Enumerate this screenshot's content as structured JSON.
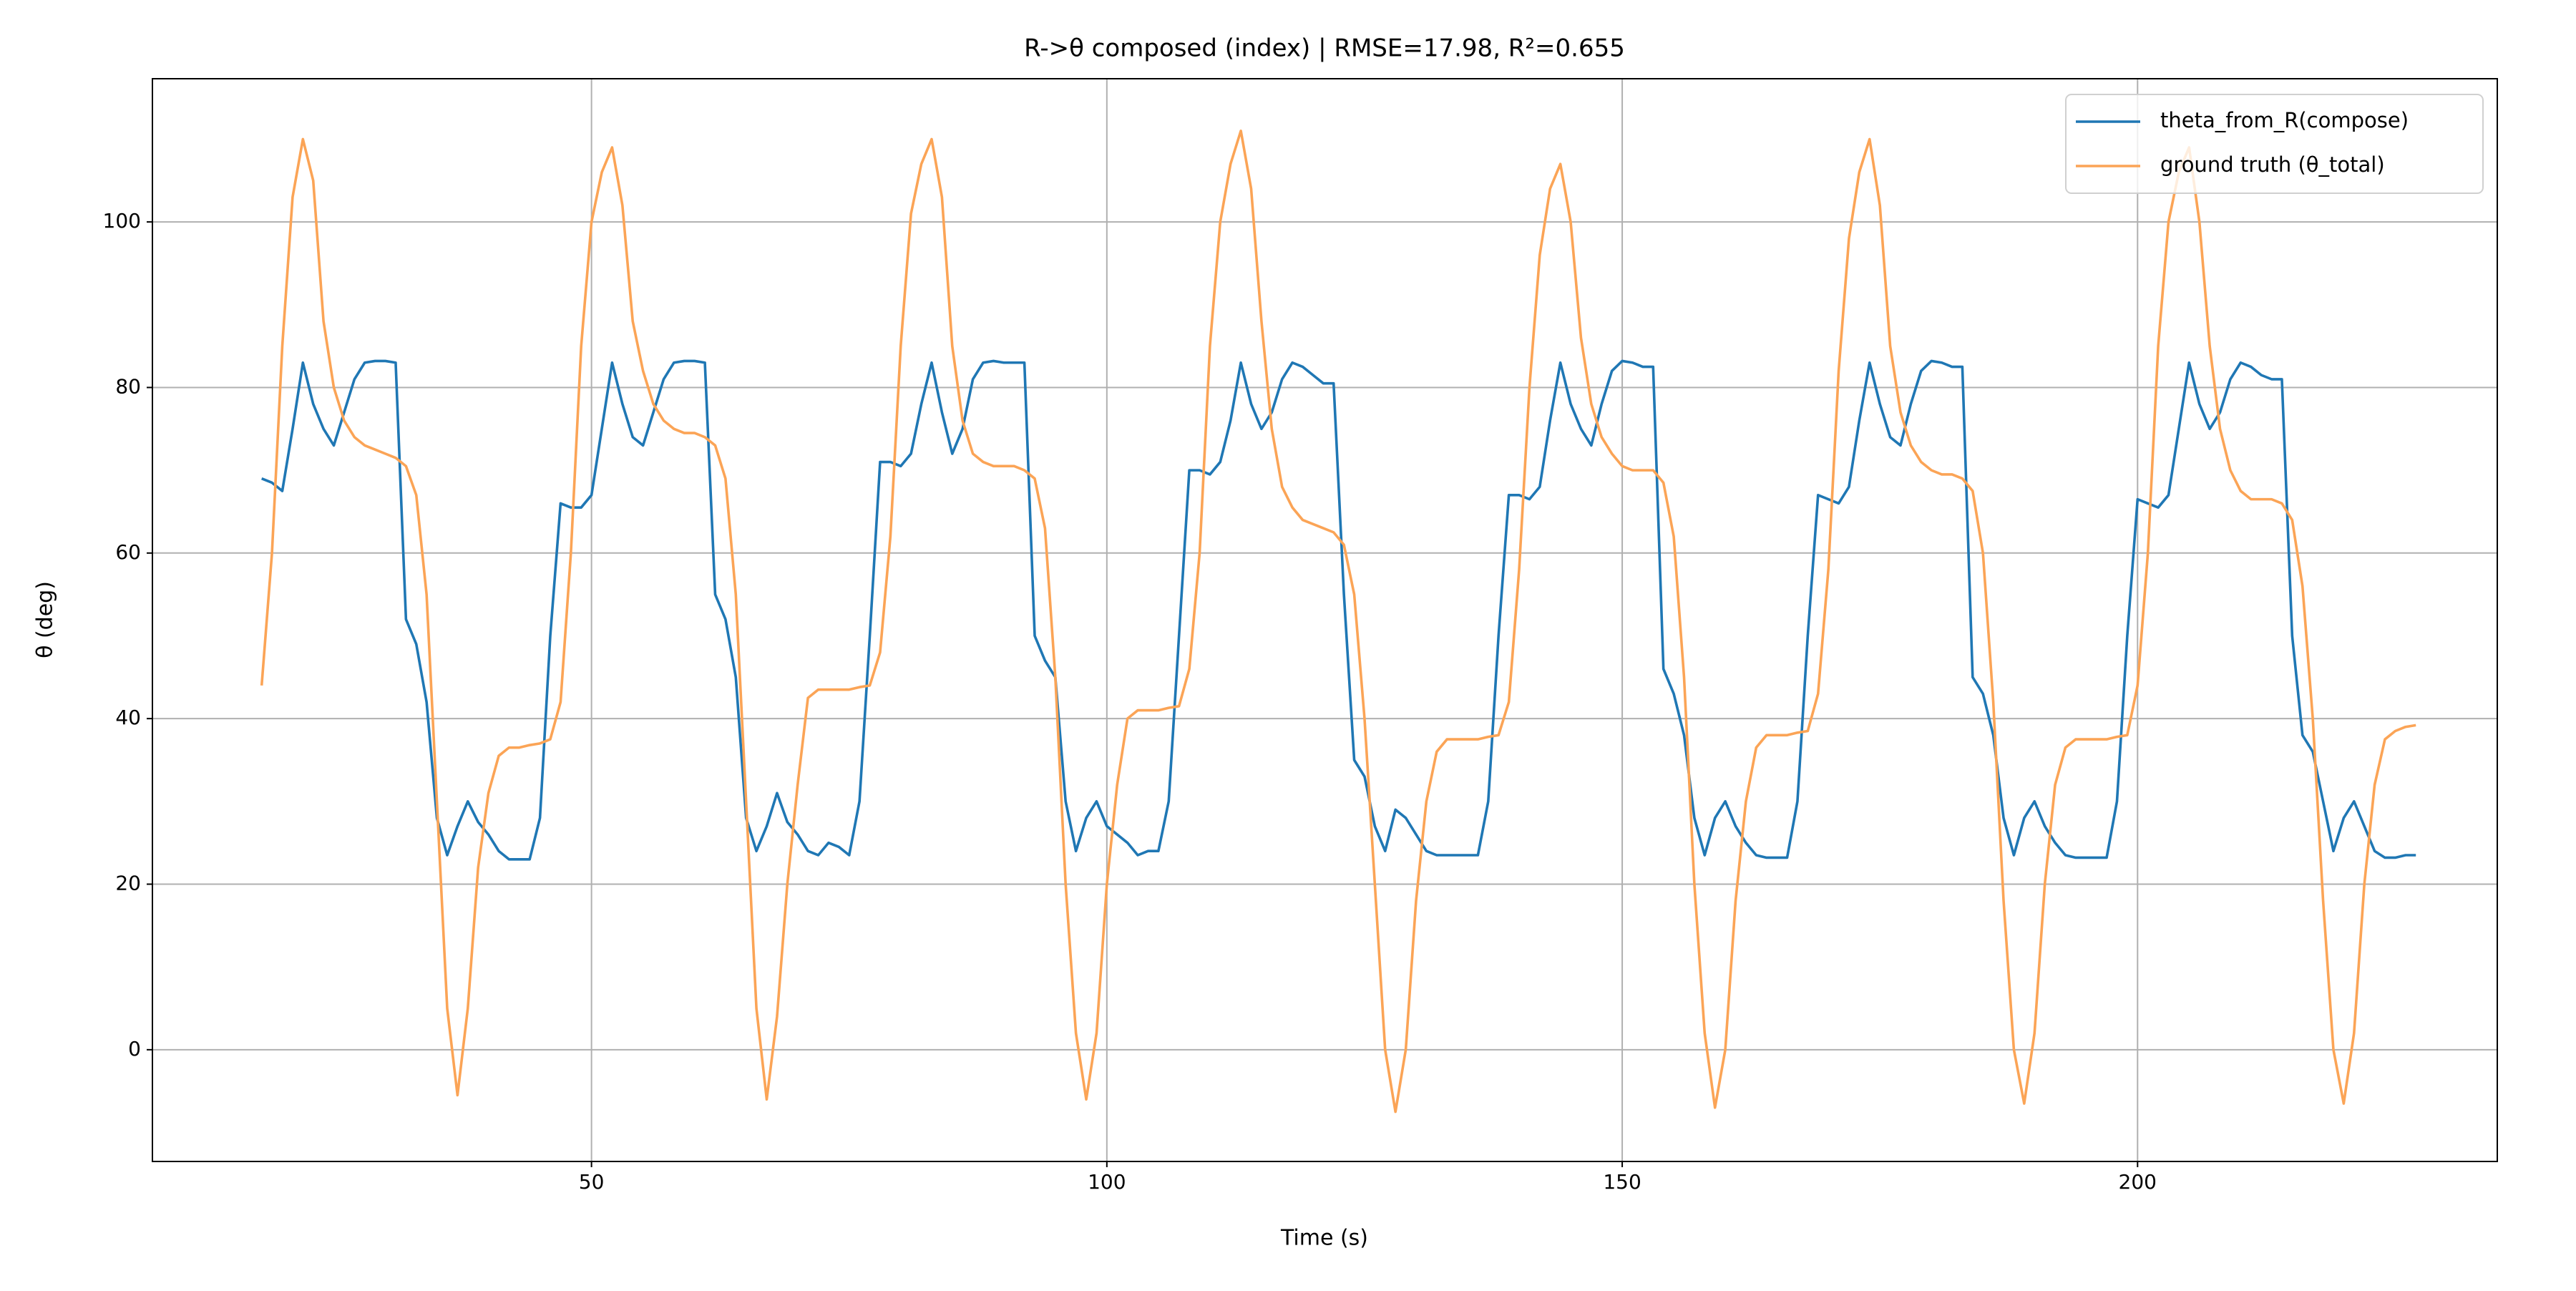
{
  "chart_data": {
    "type": "line",
    "title": "R->θ composed (index) | RMSE=17.98, R²=0.655",
    "xlabel": "Time (s)",
    "ylabel": "θ (deg)",
    "xlim": [
      7.4,
      234.9
    ],
    "ylim": [
      -13.5,
      117.3
    ],
    "xticks": [
      50,
      100,
      150,
      200
    ],
    "yticks": [
      0,
      20,
      40,
      60,
      80,
      100
    ],
    "grid": true,
    "legend": "upper right",
    "x": [
      18,
      19,
      20,
      21,
      22,
      23,
      24,
      25,
      26,
      27,
      28,
      29,
      30,
      31,
      32,
      33,
      34,
      35,
      36,
      37,
      38,
      39,
      40,
      41,
      42,
      43,
      44,
      45,
      46,
      47,
      48,
      49,
      50,
      51,
      52,
      53,
      54,
      55,
      56,
      57,
      58,
      59,
      60,
      61,
      62,
      63,
      64,
      65,
      66,
      67,
      68,
      69,
      70,
      71,
      72,
      73,
      74,
      75,
      76,
      77,
      78,
      79,
      80,
      81,
      82,
      83,
      84,
      85,
      86,
      87,
      88,
      89,
      90,
      91,
      92,
      93,
      94,
      95,
      96,
      97,
      98,
      99,
      100,
      101,
      102,
      103,
      104,
      105,
      106,
      107,
      108,
      109,
      110,
      111,
      112,
      113,
      114,
      115,
      116,
      117,
      118,
      119,
      120,
      121,
      122,
      123,
      124,
      125,
      126,
      127,
      128,
      129,
      130,
      131,
      132,
      133,
      134,
      135,
      136,
      137,
      138,
      139,
      140,
      141,
      142,
      143,
      144,
      145,
      146,
      147,
      148,
      149,
      150,
      151,
      152,
      153,
      154,
      155,
      156,
      157,
      158,
      159,
      160,
      161,
      162,
      163,
      164,
      165,
      166,
      167,
      168,
      169,
      170,
      171,
      172,
      173,
      174,
      175,
      176,
      177,
      178,
      179,
      180,
      181,
      182,
      183,
      184,
      185,
      186,
      187,
      188,
      189,
      190,
      191,
      192,
      193,
      194,
      195,
      196,
      197,
      198,
      199,
      200,
      201,
      202,
      203,
      204,
      205,
      206,
      207,
      208,
      209,
      210,
      211,
      212,
      213,
      214,
      215,
      216,
      217,
      218,
      219,
      220,
      221,
      222,
      223,
      224,
      225,
      226,
      227
    ],
    "series": [
      {
        "name": "theta_from_R(compose)",
        "color": "#1f77b4",
        "values": [
          69,
          68.5,
          67.5,
          75,
          83,
          78,
          75,
          73,
          77,
          81,
          83,
          83.2,
          83.2,
          83,
          52,
          49,
          42,
          28,
          23.5,
          27,
          30,
          27.5,
          26,
          24,
          23,
          23,
          23,
          28,
          50,
          66,
          65.5,
          65.5,
          67,
          75,
          83,
          78,
          74,
          73,
          77,
          81,
          83,
          83.2,
          83.2,
          83,
          55,
          52,
          45,
          28,
          24,
          27,
          31,
          27.5,
          26,
          24,
          23.5,
          25,
          24.5,
          23.5,
          30,
          50,
          71,
          71,
          70.5,
          72,
          78,
          83,
          77,
          72,
          75,
          81,
          83,
          83.2,
          83,
          83,
          83,
          50,
          47,
          45,
          30,
          24,
          28,
          30,
          27,
          26,
          25,
          23.5,
          24,
          24,
          30,
          50,
          70,
          70,
          69.5,
          71,
          76,
          83,
          78,
          75,
          77,
          81,
          83,
          82.5,
          81.5,
          80.5,
          80.5,
          55,
          35,
          33,
          27,
          24,
          29,
          28,
          26,
          24,
          23.5,
          23.5,
          23.5,
          23.5,
          23.5,
          30,
          50,
          67,
          67,
          66.5,
          68,
          76,
          83,
          78,
          75,
          73,
          78,
          82,
          83.2,
          83,
          82.5,
          82.5,
          46,
          43,
          38,
          28,
          23.5,
          28,
          30,
          27,
          25,
          23.5,
          23.2,
          23.2,
          23.2,
          30,
          50,
          67,
          66.5,
          66,
          68,
          76,
          83,
          78,
          74,
          73,
          78,
          82,
          83.2,
          83,
          82.5,
          82.5,
          45,
          43,
          38,
          28,
          23.5,
          28,
          30,
          27,
          25,
          23.5,
          23.2,
          23.2,
          23.2,
          23.2,
          30,
          50,
          66.5,
          66,
          65.5,
          67,
          75,
          83,
          78,
          75,
          77,
          81,
          83,
          82.5,
          81.5,
          81,
          81,
          50,
          38,
          36,
          30,
          24,
          28,
          30,
          27,
          24,
          23.2,
          23.2,
          23.5,
          23.5
        ]
      },
      {
        "name": "ground truth (θ_total)",
        "color": "#fba456",
        "values": [
          44,
          60,
          85,
          103,
          110,
          105,
          88,
          80,
          76,
          74,
          73,
          72.5,
          72,
          71.5,
          70.5,
          67,
          55,
          30,
          5,
          -5.5,
          5,
          22,
          31,
          35.5,
          36.5,
          36.5,
          36.8,
          37,
          37.5,
          42,
          60,
          85,
          100,
          106,
          109,
          102,
          88,
          82,
          78,
          76,
          75,
          74.5,
          74.5,
          74,
          73,
          69,
          55,
          30,
          5,
          -6,
          4,
          20,
          32,
          42.5,
          43.5,
          43.5,
          43.5,
          43.5,
          43.8,
          44,
          48,
          62,
          85,
          101,
          107,
          110,
          103,
          85,
          76,
          72,
          71,
          70.5,
          70.5,
          70.5,
          70,
          69,
          63,
          45,
          20,
          2,
          -6,
          2,
          20,
          32,
          40,
          41,
          41,
          41,
          41.3,
          41.5,
          46,
          60,
          85,
          100,
          107,
          111,
          104,
          88,
          75,
          68,
          65.5,
          64,
          63.5,
          63,
          62.5,
          61,
          55,
          40,
          20,
          0,
          -7.5,
          0,
          18,
          30,
          36,
          37.5,
          37.5,
          37.5,
          37.5,
          37.8,
          38,
          42,
          58,
          80,
          96,
          104,
          107,
          100,
          86,
          78,
          74,
          72,
          70.5,
          70,
          70,
          70,
          68.5,
          62,
          45,
          20,
          2,
          -7,
          0,
          18,
          30,
          36.5,
          38,
          38,
          38,
          38.3,
          38.5,
          43,
          58,
          82,
          98,
          106,
          110,
          102,
          85,
          77,
          73,
          71,
          70,
          69.5,
          69.5,
          69,
          67.5,
          60,
          42,
          18,
          0,
          -6.5,
          2,
          20,
          32,
          36.5,
          37.5,
          37.5,
          37.5,
          37.5,
          37.8,
          38,
          44,
          60,
          85,
          100,
          106,
          109,
          100,
          85,
          75,
          70,
          67.5,
          66.5,
          66.5,
          66.5,
          66,
          64,
          56,
          40,
          18,
          0,
          -6.5,
          2,
          20,
          32,
          37.5,
          38.5,
          39,
          39.2
        ]
      }
    ]
  }
}
